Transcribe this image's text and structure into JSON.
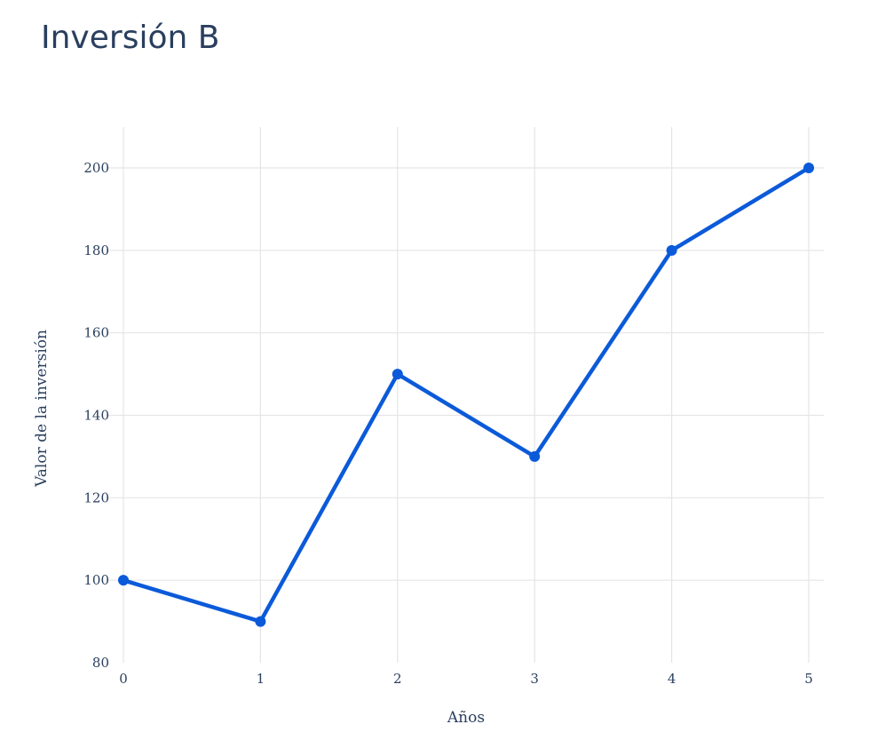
{
  "chart_data": {
    "type": "line",
    "title": "Inversión B",
    "xlabel": "Años",
    "ylabel": "Valor de la inversión",
    "x": [
      0,
      1,
      2,
      3,
      4,
      5
    ],
    "series": [
      {
        "values": [
          100,
          90,
          150,
          130,
          180,
          200
        ]
      }
    ],
    "xlim": [
      0,
      5
    ],
    "ylim": [
      80,
      210
    ],
    "x_ticks": [
      "0",
      "1",
      "2",
      "3",
      "4",
      "5"
    ],
    "y_ticks": [
      "80",
      "100",
      "120",
      "140",
      "160",
      "180",
      "200"
    ],
    "grid": true,
    "line_color": "#0b5ad9",
    "grid_color": "#e5e5e5",
    "text_color": "#2a3f5f"
  }
}
